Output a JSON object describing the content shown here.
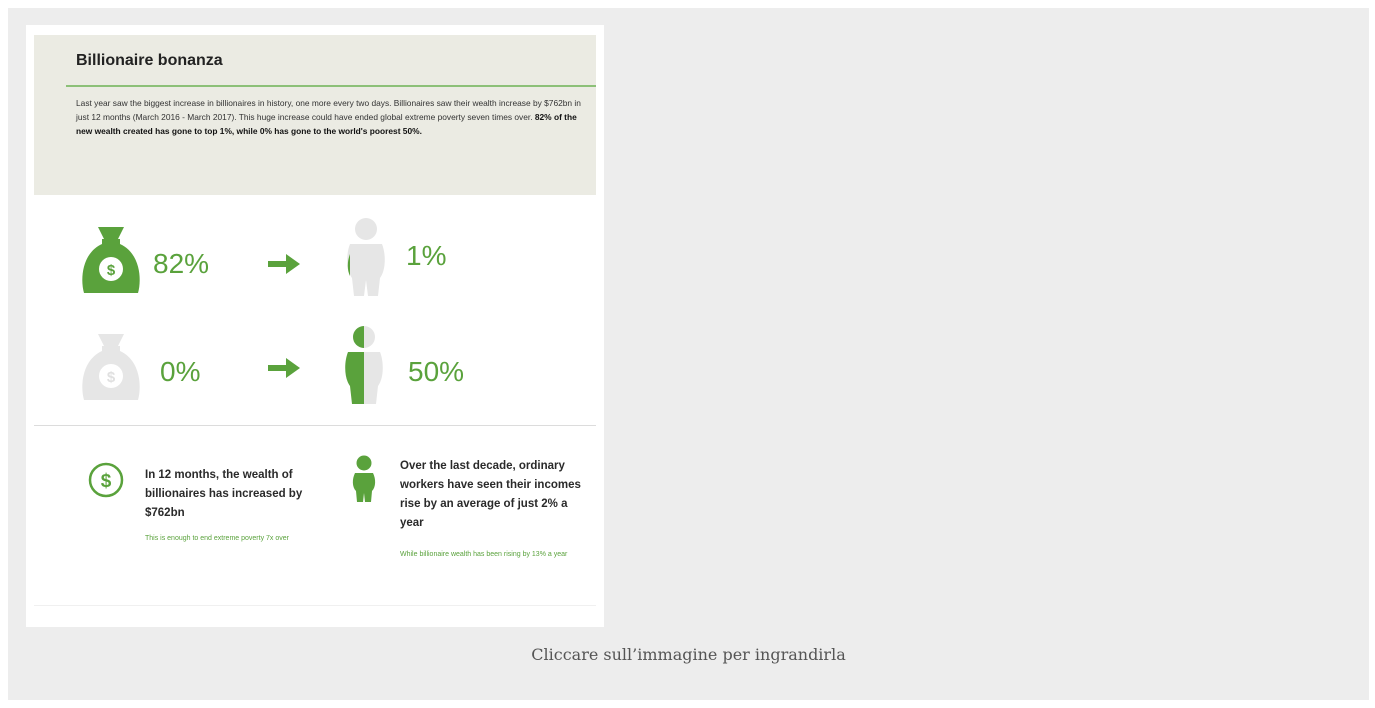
{
  "infographic": {
    "title": "Billionaire bonanza",
    "intro_text": "Last year saw the biggest increase in billionaires in history, one more every two days. Billionaires saw their wealth increase by $762bn in just 12 months (March 2016 - March 2017). This huge increase could have ended global extreme poverty seven times over.",
    "intro_bold": "82% of the new wealth created has gone to top 1%, while 0% has gone to the world's poorest 50%.",
    "rows": [
      {
        "wealth_pct": "82%",
        "people_pct": "1%"
      },
      {
        "wealth_pct": "0%",
        "people_pct": "50%"
      }
    ],
    "facts": [
      {
        "icon": "dollar-circle-icon",
        "headline": "In 12 months, the wealth of billionaires has increased by $762bn",
        "note": "This is enough to end extreme poverty 7x over"
      },
      {
        "icon": "person-icon",
        "headline": "Over the last decade, ordinary workers have seen their incomes rise by an average of just 2% a year",
        "note": "While billionaire wealth has been rising by 13% a year"
      }
    ],
    "colors": {
      "accent": "#5aa23c",
      "muted": "#e6e6e6",
      "header_bg": "#ebebe3"
    }
  },
  "caption": "Cliccare sull’immagine per ingrandirla"
}
